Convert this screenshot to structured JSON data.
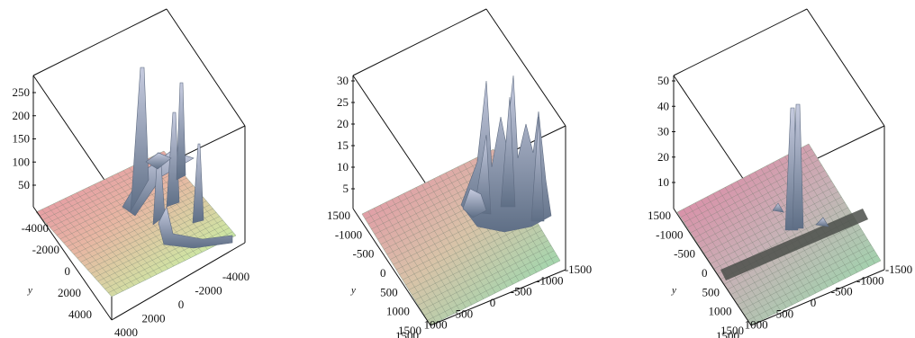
{
  "chart_data": [
    {
      "type": "surface3d",
      "axes": {
        "z_ticks": [
          "50",
          "100",
          "150",
          "200",
          "250"
        ],
        "y_ticks": [
          "-4000",
          "-2000",
          "0",
          "2000",
          "4000"
        ],
        "x_ticks": [
          "-4000",
          "-2000",
          "0",
          "2000",
          "4000"
        ],
        "y_label": "y"
      },
      "zlim": [
        0,
        280
      ]
    },
    {
      "type": "surface3d",
      "axes": {
        "z_ticks": [
          "5",
          "10",
          "15",
          "20",
          "25",
          "30"
        ],
        "y_ticks": [
          "1500",
          "-1000",
          "-500",
          "0",
          "500",
          "1000",
          "1500"
        ],
        "x_ticks": [
          "-1500",
          "-1000",
          "-500",
          "0",
          "500",
          "1000",
          "1500"
        ],
        "y_label": "y"
      },
      "zlim": [
        0,
        32
      ]
    },
    {
      "type": "surface3d",
      "axes": {
        "z_ticks": [
          "10",
          "20",
          "30",
          "40",
          "50"
        ],
        "y_ticks": [
          "1500",
          "-1000",
          "-500",
          "0",
          "500",
          "1000",
          "1500"
        ],
        "x_ticks": [
          "-1500",
          "-1000",
          "-500",
          "0",
          "500",
          "1000",
          "1500"
        ],
        "y_label": "y"
      },
      "zlim": [
        0,
        52
      ]
    }
  ]
}
